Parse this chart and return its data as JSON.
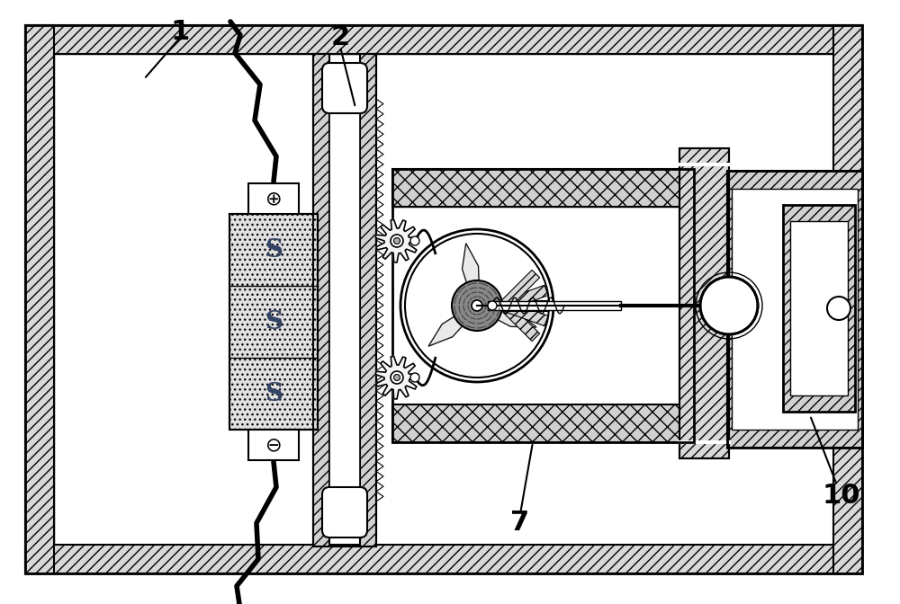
{
  "bg_color": "#ffffff",
  "label_1": "1",
  "label_2": "2",
  "label_7": "7",
  "label_10": "10",
  "figsize": [
    10.0,
    6.72
  ],
  "dpi": 100
}
